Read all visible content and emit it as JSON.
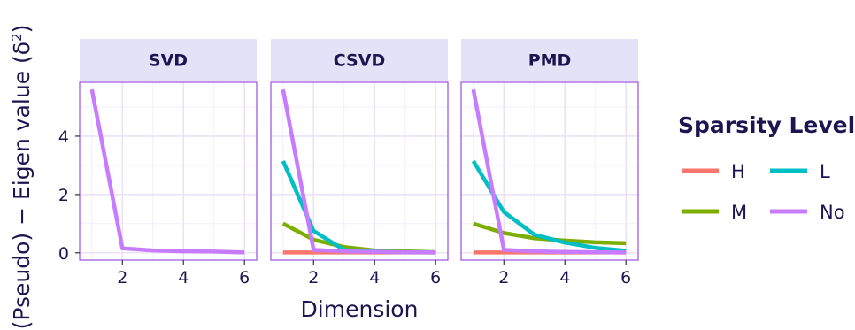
{
  "chart_data": {
    "type": "line",
    "xlabel": "Dimension",
    "ylabel": "(Pseudo) − Eigen value (δ",
    "ylabel_sup": "2",
    "ylabel_close": ")",
    "xlim": [
      0.6,
      6.4
    ],
    "ylim": [
      -0.25,
      5.85
    ],
    "xticks": [
      2,
      4,
      6
    ],
    "yticks": [
      0,
      2,
      4
    ],
    "grid": true,
    "legend": {
      "title": "Sparsity Level",
      "position": "right",
      "entries": [
        "H",
        "L",
        "M",
        "No"
      ]
    },
    "colors": {
      "H": "#f8766d",
      "M": "#7cae00",
      "L": "#00bfc4",
      "No": "#c77cff"
    },
    "panels": [
      {
        "title": "SVD",
        "series": [
          {
            "name": "No",
            "x": [
              1,
              2,
              3,
              4,
              5,
              6
            ],
            "y": [
              5.6,
              0.15,
              0.08,
              0.05,
              0.04,
              0.01
            ]
          }
        ]
      },
      {
        "title": "CSVD",
        "series": [
          {
            "name": "H",
            "x": [
              1,
              2,
              3,
              4,
              5,
              6
            ],
            "y": [
              0.01,
              0.01,
              0.01,
              0.01,
              0.01,
              0.01
            ]
          },
          {
            "name": "M",
            "x": [
              1,
              2,
              3,
              4,
              5,
              6
            ],
            "y": [
              1.0,
              0.45,
              0.2,
              0.08,
              0.05,
              0.02
            ]
          },
          {
            "name": "L",
            "x": [
              1,
              2,
              3,
              4,
              5,
              6
            ],
            "y": [
              3.15,
              0.75,
              0.1,
              0.04,
              0.02,
              0.01
            ]
          },
          {
            "name": "No",
            "x": [
              1,
              2,
              3,
              4,
              5,
              6
            ],
            "y": [
              5.6,
              0.1,
              0.05,
              0.03,
              0.02,
              0.01
            ]
          }
        ]
      },
      {
        "title": "PMD",
        "series": [
          {
            "name": "H",
            "x": [
              1,
              2,
              3,
              4,
              5,
              6
            ],
            "y": [
              0.01,
              0.01,
              0.01,
              0.01,
              0.01,
              0.01
            ]
          },
          {
            "name": "M",
            "x": [
              1,
              2,
              3,
              4,
              5,
              6
            ],
            "y": [
              1.0,
              0.68,
              0.5,
              0.42,
              0.36,
              0.33
            ]
          },
          {
            "name": "L",
            "x": [
              1,
              2,
              3,
              4,
              5,
              6
            ],
            "y": [
              3.15,
              1.4,
              0.62,
              0.35,
              0.17,
              0.07
            ]
          },
          {
            "name": "No",
            "x": [
              1,
              2,
              3,
              4,
              5,
              6
            ],
            "y": [
              5.6,
              0.1,
              0.05,
              0.03,
              0.02,
              0.01
            ]
          }
        ]
      }
    ]
  }
}
